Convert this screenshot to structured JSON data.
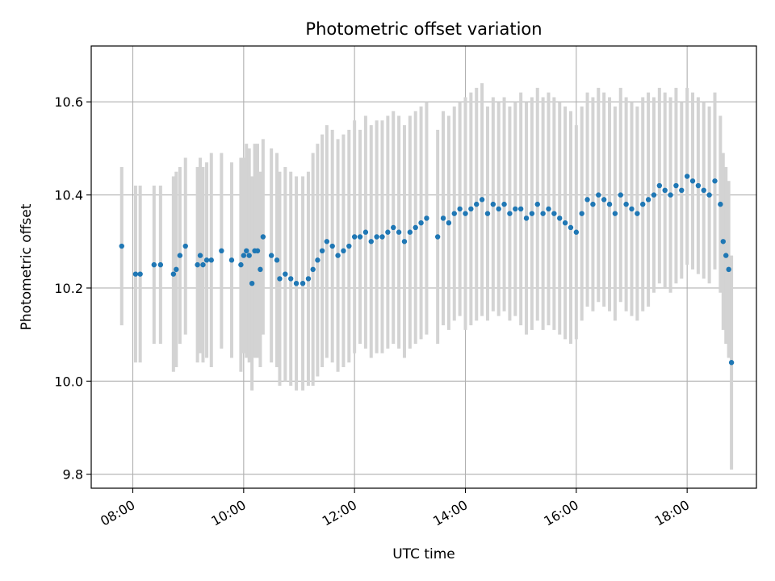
{
  "chart_data": {
    "type": "scatter",
    "title": "Photometric offset variation",
    "xlabel": "UTC time",
    "ylabel": "Photometric offset",
    "x_range": [
      "07:15",
      "19:15"
    ],
    "ylim": [
      9.77,
      10.72
    ],
    "x_ticks": [
      "08:00",
      "10:00",
      "12:00",
      "14:00",
      "16:00",
      "18:00"
    ],
    "y_ticks": [
      "9.8",
      "10.0",
      "10.2",
      "10.4",
      "10.6"
    ],
    "grid": true,
    "legend": "none",
    "colors": {
      "point": "#1f77b4",
      "errorbar": "#d3d3d3",
      "grid": "#b0b0b0"
    },
    "series": [
      {
        "x": [
          "07:48",
          "08:03",
          "08:08",
          "08:23",
          "08:30",
          "08:44",
          "08:47",
          "08:51",
          "08:57",
          "09:10",
          "09:13",
          "09:16",
          "09:20",
          "09:25",
          "09:36",
          "09:47",
          "09:57",
          "10:00",
          "10:03",
          "10:06",
          "10:09",
          "10:12",
          "10:15",
          "10:18",
          "10:21",
          "10:30",
          "10:36",
          "10:39",
          "10:45",
          "10:51",
          "10:57",
          "11:04",
          "11:10",
          "11:15",
          "11:20",
          "11:25",
          "11:30",
          "11:36",
          "11:42",
          "11:48",
          "11:54",
          "12:00",
          "12:06",
          "12:12",
          "12:18",
          "12:24",
          "12:30",
          "12:36",
          "12:42",
          "12:48",
          "12:54",
          "13:00",
          "13:06",
          "13:12",
          "13:18",
          "13:30",
          "13:36",
          "13:42",
          "13:48",
          "13:54",
          "14:00",
          "14:06",
          "14:12",
          "14:18",
          "14:24",
          "14:30",
          "14:36",
          "14:42",
          "14:48",
          "14:54",
          "15:00",
          "15:06",
          "15:12",
          "15:18",
          "15:24",
          "15:30",
          "15:36",
          "15:42",
          "15:48",
          "15:54",
          "16:00",
          "16:06",
          "16:12",
          "16:18",
          "16:24",
          "16:30",
          "16:36",
          "16:42",
          "16:48",
          "16:54",
          "17:00",
          "17:06",
          "17:12",
          "17:18",
          "17:24",
          "17:30",
          "17:36",
          "17:42",
          "17:48",
          "17:54",
          "18:00",
          "18:06",
          "18:12",
          "18:18",
          "18:24",
          "18:30",
          "18:36",
          "18:39",
          "18:42",
          "18:45"
        ],
        "y": [
          10.29,
          10.23,
          10.23,
          10.25,
          10.25,
          10.23,
          10.24,
          10.27,
          10.29,
          10.25,
          10.27,
          10.25,
          10.26,
          10.26,
          10.28,
          10.26,
          10.25,
          10.27,
          10.28,
          10.27,
          10.21,
          10.28,
          10.28,
          10.24,
          10.31,
          10.27,
          10.26,
          10.22,
          10.23,
          10.22,
          10.21,
          10.21,
          10.22,
          10.24,
          10.26,
          10.28,
          10.3,
          10.29,
          10.27,
          10.28,
          10.29,
          10.31,
          10.31,
          10.32,
          10.3,
          10.31,
          10.31,
          10.32,
          10.33,
          10.32,
          10.3,
          10.32,
          10.33,
          10.34,
          10.35,
          10.31,
          10.35,
          10.34,
          10.36,
          10.37,
          10.36,
          10.37,
          10.38,
          10.39,
          10.36,
          10.38,
          10.37,
          10.38,
          10.36,
          10.37,
          10.37,
          10.35,
          10.36,
          10.38,
          10.36,
          10.37,
          10.36,
          10.35,
          10.34,
          10.33,
          10.32,
          10.36,
          10.39,
          10.38,
          10.4,
          10.39,
          10.38,
          10.36,
          10.4,
          10.38,
          10.37,
          10.36,
          10.38,
          10.39,
          10.4,
          10.42,
          10.41,
          10.4,
          10.42,
          10.41,
          10.44,
          10.43,
          10.42,
          10.41,
          10.4,
          10.43,
          10.38,
          10.3,
          10.27,
          10.24
        ],
        "yerr": [
          0.17,
          0.19,
          0.19,
          0.17,
          0.17,
          0.21,
          0.21,
          0.19,
          0.19,
          0.21,
          0.21,
          0.21,
          0.21,
          0.23,
          0.21,
          0.21,
          0.23,
          0.21,
          0.23,
          0.23,
          0.23,
          0.23,
          0.23,
          0.21,
          0.21,
          0.23,
          0.23,
          0.23,
          0.23,
          0.23,
          0.23,
          0.23,
          0.23,
          0.25,
          0.25,
          0.25,
          0.25,
          0.25,
          0.25,
          0.25,
          0.25,
          0.25,
          0.23,
          0.25,
          0.25,
          0.25,
          0.25,
          0.25,
          0.25,
          0.25,
          0.25,
          0.25,
          0.25,
          0.25,
          0.25,
          0.23,
          0.23,
          0.23,
          0.23,
          0.23,
          0.25,
          0.25,
          0.25,
          0.25,
          0.23,
          0.23,
          0.23,
          0.23,
          0.23,
          0.23,
          0.25,
          0.25,
          0.25,
          0.25,
          0.25,
          0.25,
          0.25,
          0.25,
          0.25,
          0.25,
          0.23,
          0.23,
          0.23,
          0.23,
          0.23,
          0.23,
          0.23,
          0.23,
          0.23,
          0.23,
          0.23,
          0.23,
          0.23,
          0.23,
          0.21,
          0.21,
          0.21,
          0.21,
          0.21,
          0.19,
          0.19,
          0.19,
          0.19,
          0.19,
          0.19,
          0.19,
          0.19,
          0.19,
          0.19,
          0.19
        ]
      },
      {
        "x": [
          "18:48"
        ],
        "y": [
          10.04
        ],
        "yerr": [
          0.23
        ]
      }
    ]
  }
}
